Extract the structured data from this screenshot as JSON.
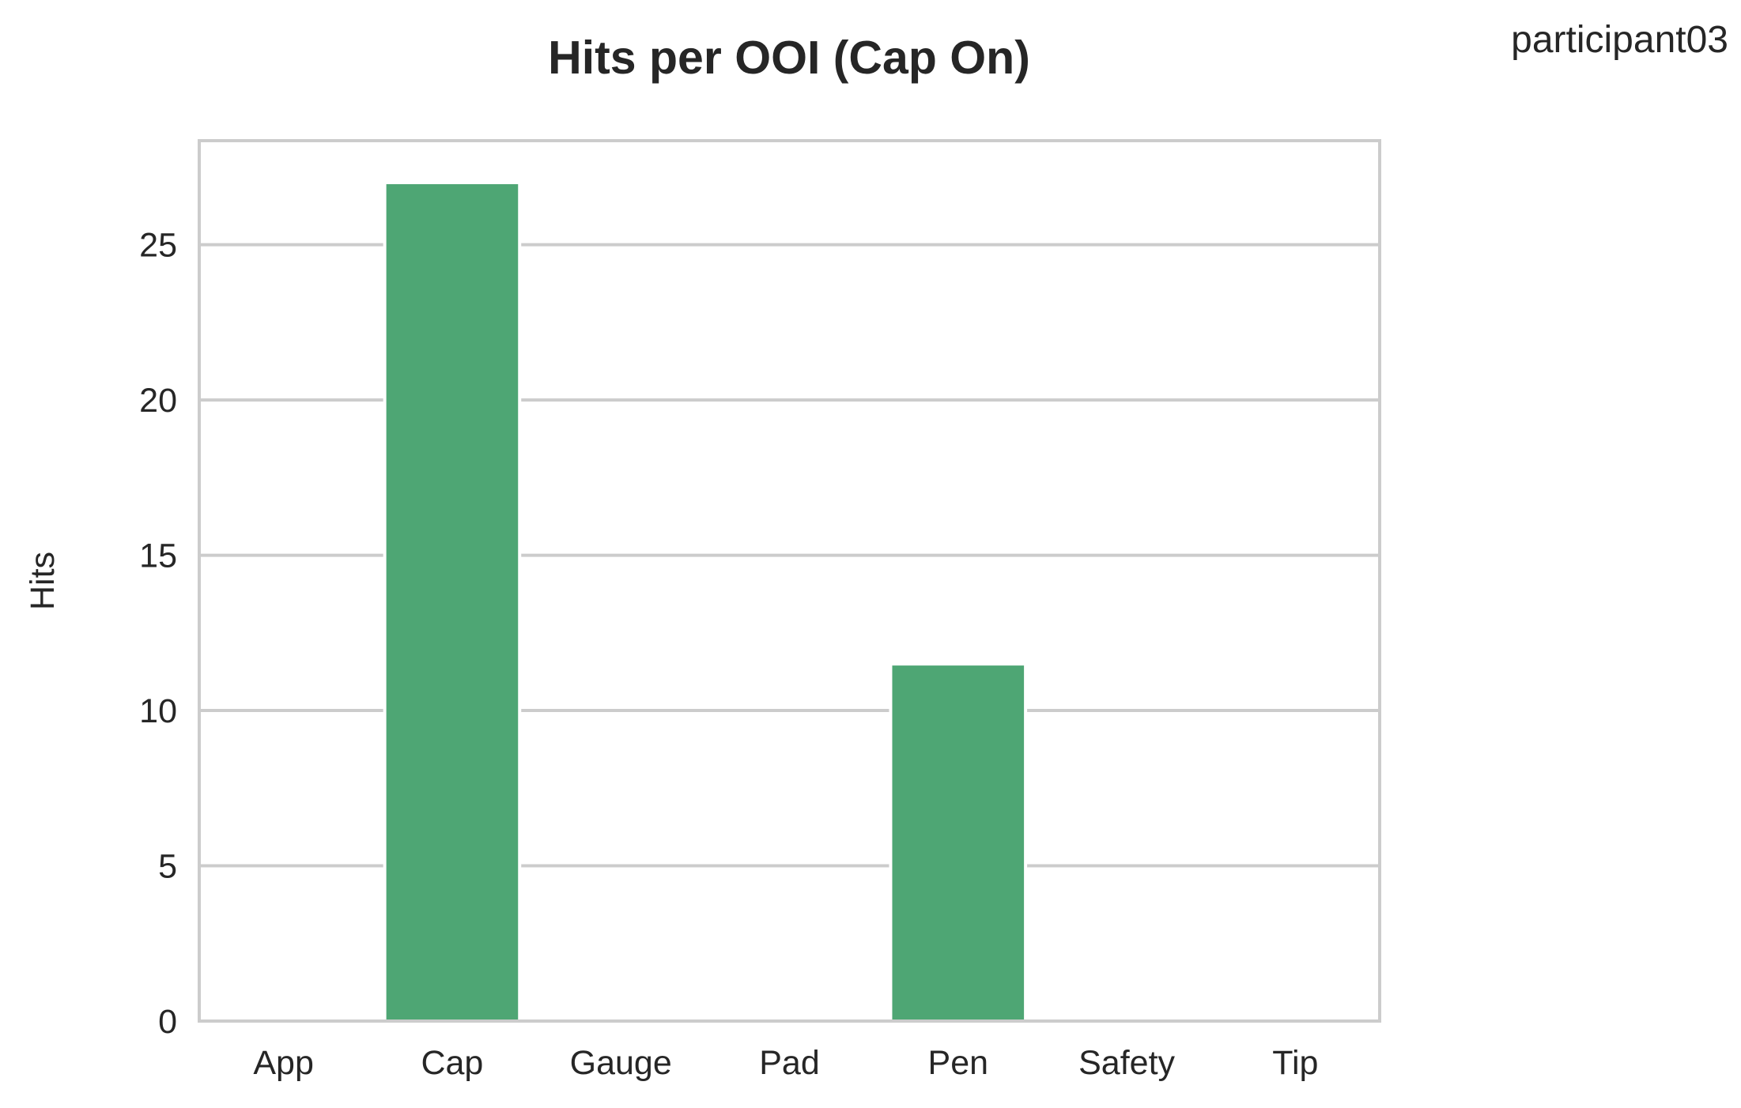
{
  "figure": {
    "corner_label": "participant03",
    "bar_color": "#4ea674",
    "grid_color": "#cccccc",
    "frame_color": "#cccccc",
    "text_color": "#262626"
  },
  "chart_data": {
    "type": "bar",
    "title": "Hits per OOI (Cap On)",
    "xlabel": "",
    "ylabel": "Hits",
    "categories": [
      "App",
      "Cap",
      "Gauge",
      "Pad",
      "Pen",
      "Safety",
      "Tip"
    ],
    "values": [
      0,
      27,
      0,
      0,
      11.5,
      0,
      0
    ],
    "ylim": [
      0,
      28.35
    ],
    "yticks": [
      0,
      5,
      10,
      15,
      20,
      25
    ],
    "ytick_labels": [
      "0",
      "5",
      "10",
      "15",
      "20",
      "25"
    ],
    "grid": "horizontal",
    "legend": "none"
  }
}
